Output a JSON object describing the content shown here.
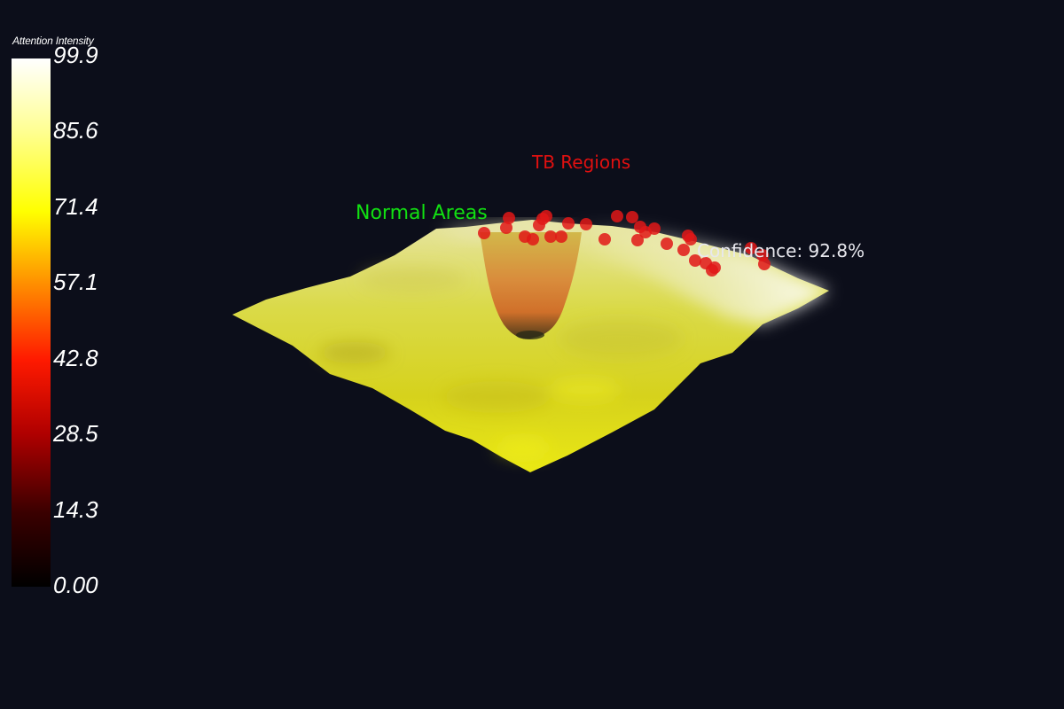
{
  "chart_data": {
    "type": "surface3d",
    "colorbar": {
      "title": "Attention Intensity",
      "ticks": [
        "99.9",
        "85.6",
        "71.4",
        "57.1",
        "42.8",
        "28.5",
        "14.3",
        "0.00"
      ],
      "range": [
        0,
        99.9
      ],
      "colormap": [
        "#000000",
        "#8c0000",
        "#ff1a00",
        "#ff9900",
        "#ffff00",
        "#ffff99",
        "#ffffff"
      ]
    },
    "surface": {
      "dominant_value_range": [
        70,
        95
      ],
      "depression_min_value": 50,
      "surface_color": "#e0e02a"
    },
    "annotations": {
      "tb_regions": "TB Regions",
      "normal_areas": "Normal Areas",
      "confidence": "Confidence: 92.8%"
    },
    "tb_points_color": "#e01818",
    "colors": {
      "background": "#0c0e1a",
      "tb_label": "#e01010",
      "normal_label": "#12e012",
      "confidence_label": "#e8e8ee"
    }
  }
}
